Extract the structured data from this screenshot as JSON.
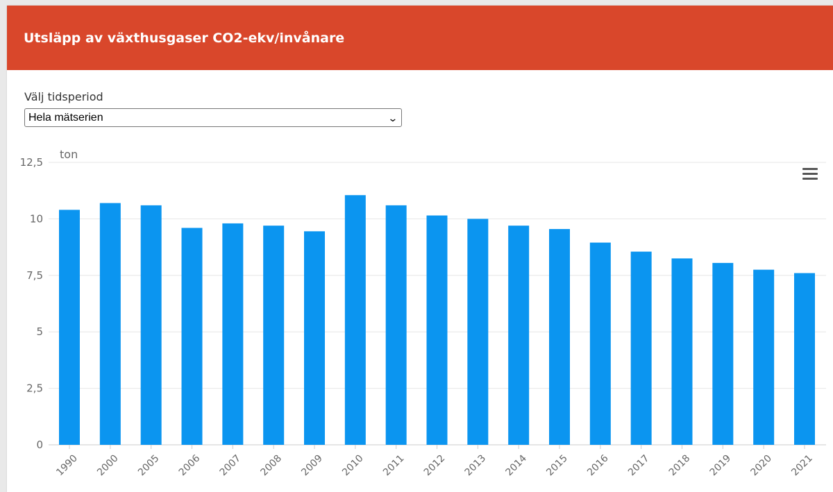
{
  "header": {
    "title": "Utsläpp av växthusgaser CO2-ekv/invånare"
  },
  "period_selector": {
    "label": "Välj tidsperiod",
    "selected": "Hela mätserien"
  },
  "chart_menu": {
    "icon": "hamburger-menu-icon"
  },
  "colors": {
    "header": "#d9472b",
    "bar": "#0b95f0"
  },
  "chart_data": {
    "type": "bar",
    "ylabel": "ton",
    "ylim": [
      0,
      12.5
    ],
    "yticks": [
      "0",
      "2,5",
      "5",
      "7,5",
      "10",
      "12,5"
    ],
    "categories": [
      "1990",
      "2000",
      "2005",
      "2006",
      "2007",
      "2008",
      "2009",
      "2010",
      "2011",
      "2012",
      "2013",
      "2014",
      "2015",
      "2016",
      "2017",
      "2018",
      "2019",
      "2020",
      "2021"
    ],
    "values": [
      10.4,
      10.7,
      10.6,
      9.6,
      9.8,
      9.7,
      9.45,
      11.05,
      10.6,
      10.15,
      10.0,
      9.7,
      9.55,
      8.95,
      8.55,
      8.25,
      8.05,
      7.75,
      7.6
    ],
    "grid": true,
    "legend": "none"
  }
}
